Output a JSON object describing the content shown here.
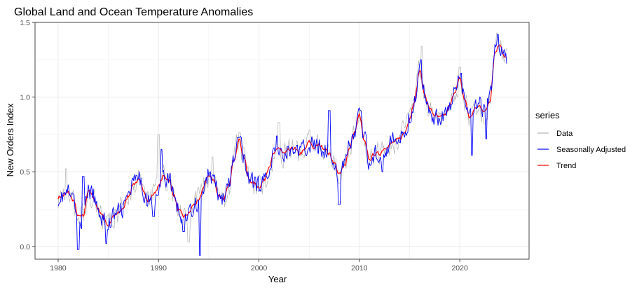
{
  "chart_data": {
    "type": "line",
    "title": "Global Land and Ocean Temperature Anomalies",
    "xlabel": "Year",
    "ylabel": "New Orders Index",
    "xlim": [
      1977.7,
      2026.9
    ],
    "ylim": [
      -0.085,
      1.5
    ],
    "x_ticks": [
      1980,
      1990,
      2000,
      2010,
      2020
    ],
    "y_ticks": [
      0.0,
      0.5,
      1.0,
      1.5
    ],
    "y_tick_labels": [
      "0.0",
      "0.5",
      "1.0",
      "1.5"
    ],
    "grid": true,
    "legend": {
      "title": "series",
      "placement": "right",
      "entries": [
        "Data",
        "Seasonally Adjusted",
        "Trend"
      ]
    },
    "colors": {
      "Data": "#b3b3b3",
      "Seasonally Adjusted": "#0000ff",
      "Trend": "#ff0000",
      "panel_border": "#333333",
      "grid": "#ebebeb"
    },
    "series": [
      {
        "name": "Trend",
        "x": [
          1980.0,
          1980.5,
          1981.0,
          1981.5,
          1982.0,
          1982.5,
          1983.0,
          1983.5,
          1984.0,
          1984.5,
          1985.0,
          1985.5,
          1986.0,
          1986.5,
          1987.0,
          1987.5,
          1988.0,
          1988.5,
          1989.0,
          1989.5,
          1990.0,
          1990.5,
          1991.0,
          1991.5,
          1992.0,
          1992.5,
          1993.0,
          1993.5,
          1994.0,
          1994.5,
          1995.0,
          1995.5,
          1996.0,
          1996.5,
          1997.0,
          1997.5,
          1998.0,
          1998.5,
          1999.0,
          1999.5,
          2000.0,
          2000.5,
          2001.0,
          2001.5,
          2002.0,
          2002.5,
          2003.0,
          2003.5,
          2004.0,
          2004.5,
          2005.0,
          2005.5,
          2006.0,
          2006.5,
          2007.0,
          2007.5,
          2008.0,
          2008.5,
          2009.0,
          2009.5,
          2010.0,
          2010.5,
          2011.0,
          2011.5,
          2012.0,
          2012.5,
          2013.0,
          2013.5,
          2014.0,
          2014.5,
          2015.0,
          2015.5,
          2016.0,
          2016.5,
          2017.0,
          2017.5,
          2018.0,
          2018.5,
          2019.0,
          2019.5,
          2020.0,
          2020.5,
          2021.0,
          2021.5,
          2022.0,
          2022.5,
          2023.0,
          2023.5,
          2024.0,
          2024.5
        ],
        "values": [
          0.33,
          0.34,
          0.36,
          0.31,
          0.2,
          0.2,
          0.38,
          0.33,
          0.25,
          0.2,
          0.14,
          0.2,
          0.22,
          0.26,
          0.34,
          0.42,
          0.44,
          0.38,
          0.3,
          0.35,
          0.4,
          0.47,
          0.45,
          0.35,
          0.24,
          0.2,
          0.22,
          0.28,
          0.3,
          0.4,
          0.48,
          0.44,
          0.34,
          0.32,
          0.4,
          0.58,
          0.72,
          0.6,
          0.45,
          0.42,
          0.4,
          0.44,
          0.54,
          0.62,
          0.66,
          0.62,
          0.64,
          0.66,
          0.62,
          0.64,
          0.7,
          0.66,
          0.68,
          0.66,
          0.62,
          0.56,
          0.48,
          0.54,
          0.66,
          0.76,
          0.88,
          0.7,
          0.58,
          0.62,
          0.62,
          0.66,
          0.68,
          0.7,
          0.72,
          0.76,
          0.86,
          0.98,
          1.18,
          1.02,
          0.92,
          0.88,
          0.86,
          0.88,
          0.94,
          1.04,
          1.12,
          0.98,
          0.86,
          0.92,
          0.94,
          0.9,
          0.98,
          1.3,
          1.36,
          1.26
        ]
      },
      {
        "name": "Seasonally Adjusted",
        "x": [
          1980.0,
          1980.5,
          1981.0,
          1981.5,
          1982.0,
          1982.5,
          1983.0,
          1983.5,
          1984.0,
          1984.5,
          1985.0,
          1985.5,
          1986.0,
          1986.5,
          1987.0,
          1987.5,
          1988.0,
          1988.5,
          1989.0,
          1989.5,
          1990.0,
          1990.5,
          1991.0,
          1991.5,
          1992.0,
          1992.5,
          1993.0,
          1993.5,
          1994.0,
          1994.5,
          1995.0,
          1995.5,
          1996.0,
          1996.5,
          1997.0,
          1997.5,
          1998.0,
          1998.5,
          1999.0,
          1999.5,
          2000.0,
          2000.5,
          2001.0,
          2001.5,
          2002.0,
          2002.5,
          2003.0,
          2003.5,
          2004.0,
          2004.5,
          2005.0,
          2005.5,
          2006.0,
          2006.5,
          2007.0,
          2007.5,
          2008.0,
          2008.5,
          2009.0,
          2009.5,
          2010.0,
          2010.5,
          2011.0,
          2011.5,
          2012.0,
          2012.5,
          2013.0,
          2013.5,
          2014.0,
          2014.5,
          2015.0,
          2015.5,
          2016.0,
          2016.5,
          2017.0,
          2017.5,
          2018.0,
          2018.5,
          2019.0,
          2019.5,
          2020.0,
          2020.5,
          2021.0,
          2021.5,
          2022.0,
          2022.5,
          2023.0,
          2023.5,
          2024.0,
          2024.5
        ],
        "values": [
          0.33,
          0.34,
          0.36,
          0.31,
          0.2,
          0.2,
          0.38,
          0.33,
          0.25,
          0.2,
          0.14,
          0.2,
          0.22,
          0.26,
          0.34,
          0.42,
          0.44,
          0.38,
          0.3,
          0.35,
          0.4,
          0.47,
          0.45,
          0.35,
          0.24,
          0.2,
          0.22,
          0.28,
          0.3,
          0.4,
          0.48,
          0.44,
          0.34,
          0.32,
          0.4,
          0.58,
          0.72,
          0.6,
          0.45,
          0.42,
          0.4,
          0.44,
          0.54,
          0.62,
          0.66,
          0.62,
          0.64,
          0.66,
          0.62,
          0.64,
          0.7,
          0.66,
          0.68,
          0.66,
          0.62,
          0.56,
          0.48,
          0.54,
          0.66,
          0.76,
          0.88,
          0.7,
          0.58,
          0.62,
          0.62,
          0.66,
          0.68,
          0.7,
          0.72,
          0.76,
          0.86,
          0.98,
          1.18,
          1.02,
          0.92,
          0.88,
          0.86,
          0.88,
          0.94,
          1.04,
          1.12,
          0.98,
          0.86,
          0.92,
          0.94,
          0.9,
          0.98,
          1.3,
          1.36,
          1.26
        ],
        "spikes": [
          {
            "x": 1982.0,
            "y": -0.02
          },
          {
            "x": 1982.5,
            "y": 0.47
          },
          {
            "x": 1984.8,
            "y": 0.02
          },
          {
            "x": 1989.5,
            "y": 0.2
          },
          {
            "x": 1990.3,
            "y": 0.65
          },
          {
            "x": 1992.5,
            "y": 0.1
          },
          {
            "x": 1994.1,
            "y": -0.06
          },
          {
            "x": 1998.0,
            "y": 0.73
          },
          {
            "x": 2001.8,
            "y": 0.74
          },
          {
            "x": 2007.0,
            "y": 0.91
          },
          {
            "x": 2008.0,
            "y": 0.28
          },
          {
            "x": 2010.1,
            "y": 0.91
          },
          {
            "x": 2012.3,
            "y": 0.5
          },
          {
            "x": 2016.1,
            "y": 1.25
          },
          {
            "x": 2020.1,
            "y": 1.16
          },
          {
            "x": 2021.2,
            "y": 0.61
          },
          {
            "x": 2022.6,
            "y": 0.72
          },
          {
            "x": 2023.8,
            "y": 1.42
          }
        ]
      },
      {
        "name": "Data",
        "x": [
          1980.0,
          1980.5,
          1981.0,
          1981.5,
          1982.0,
          1982.5,
          1983.0,
          1983.5,
          1984.0,
          1984.5,
          1985.0,
          1985.5,
          1986.0,
          1986.5,
          1987.0,
          1987.5,
          1988.0,
          1988.5,
          1989.0,
          1989.5,
          1990.0,
          1990.5,
          1991.0,
          1991.5,
          1992.0,
          1992.5,
          1993.0,
          1993.5,
          1994.0,
          1994.5,
          1995.0,
          1995.5,
          1996.0,
          1996.5,
          1997.0,
          1997.5,
          1998.0,
          1998.5,
          1999.0,
          1999.5,
          2000.0,
          2000.5,
          2001.0,
          2001.5,
          2002.0,
          2002.5,
          2003.0,
          2003.5,
          2004.0,
          2004.5,
          2005.0,
          2005.5,
          2006.0,
          2006.5,
          2007.0,
          2007.5,
          2008.0,
          2008.5,
          2009.0,
          2009.5,
          2010.0,
          2010.5,
          2011.0,
          2011.5,
          2012.0,
          2012.5,
          2013.0,
          2013.5,
          2014.0,
          2014.5,
          2015.0,
          2015.5,
          2016.0,
          2016.5,
          2017.0,
          2017.5,
          2018.0,
          2018.5,
          2019.0,
          2019.5,
          2020.0,
          2020.5,
          2021.0,
          2021.5,
          2022.0,
          2022.5,
          2023.0,
          2023.5,
          2024.0,
          2024.5
        ],
        "values": [
          0.33,
          0.34,
          0.36,
          0.31,
          0.2,
          0.2,
          0.38,
          0.33,
          0.25,
          0.2,
          0.14,
          0.2,
          0.22,
          0.26,
          0.34,
          0.42,
          0.44,
          0.38,
          0.3,
          0.35,
          0.4,
          0.47,
          0.45,
          0.35,
          0.24,
          0.2,
          0.22,
          0.28,
          0.3,
          0.4,
          0.48,
          0.44,
          0.34,
          0.32,
          0.4,
          0.58,
          0.72,
          0.6,
          0.45,
          0.42,
          0.4,
          0.44,
          0.54,
          0.62,
          0.66,
          0.62,
          0.64,
          0.66,
          0.62,
          0.64,
          0.7,
          0.66,
          0.68,
          0.66,
          0.62,
          0.56,
          0.48,
          0.54,
          0.66,
          0.76,
          0.88,
          0.7,
          0.58,
          0.62,
          0.62,
          0.66,
          0.68,
          0.7,
          0.72,
          0.76,
          0.86,
          0.98,
          1.18,
          1.02,
          0.92,
          0.88,
          0.86,
          0.88,
          0.94,
          1.04,
          1.12,
          0.98,
          0.86,
          0.92,
          0.94,
          0.9,
          0.98,
          1.3,
          1.36,
          1.26
        ],
        "spikes": [
          {
            "x": 1980.8,
            "y": 0.52
          },
          {
            "x": 1990.0,
            "y": 0.75
          },
          {
            "x": 1993.0,
            "y": 0.03
          },
          {
            "x": 1995.4,
            "y": 0.6
          },
          {
            "x": 1998.1,
            "y": 0.76
          },
          {
            "x": 2002.0,
            "y": 0.83
          },
          {
            "x": 2008.0,
            "y": 0.42
          },
          {
            "x": 2016.2,
            "y": 1.34
          },
          {
            "x": 2016.8,
            "y": 0.88
          },
          {
            "x": 2020.0,
            "y": 1.2
          },
          {
            "x": 2022.5,
            "y": 0.82
          },
          {
            "x": 2023.7,
            "y": 1.43
          }
        ]
      }
    ]
  }
}
